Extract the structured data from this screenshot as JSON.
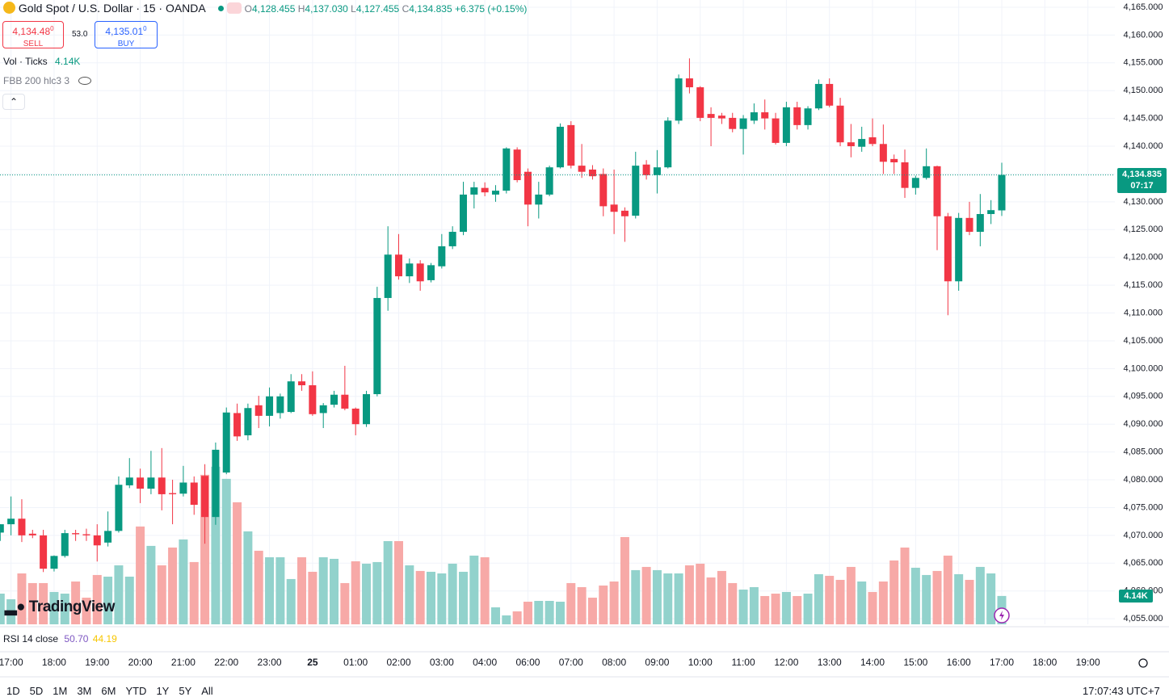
{
  "chart_data": {
    "type": "candlestick",
    "legend": {
      "title": "Gold Spot / U.S. Dollar · 15 · OANDA",
      "o_label": "O",
      "open": "4,128.455",
      "h_label": "H",
      "high": "4,137.030",
      "l_label": "L",
      "low": "4,127.455",
      "c_label": "C",
      "close": "4,134.835",
      "change": "+6.375 (+0.15%)"
    },
    "trade": {
      "sell_price": "4,134.48",
      "sell_sup": "0",
      "sell_label": "SELL",
      "spread": "53.0",
      "buy_price": "4,135.01",
      "buy_sup": "0",
      "buy_label": "BUY"
    },
    "indicators": {
      "vol_label": "Vol · Ticks",
      "vol_value": "4.14K",
      "fbb_label": "FBB 200 hlc3 3",
      "rsi_label": "RSI 14 close",
      "rsi_value": "50.70",
      "rsi_ma": "44.19"
    },
    "logo": "TradingView",
    "last_price": {
      "value": 4134.835,
      "label": "4,134.835"
    },
    "countdown": "07:17",
    "up_color": "#089981",
    "down_color": "#f23645",
    "volume_up_color": "#92d2cc",
    "volume_down_color": "#f7a9a7",
    "grid": true,
    "ylim": [
      4054,
      4166.3
    ],
    "yticks": [
      {
        "value": 4055,
        "label": "4,055.000"
      },
      {
        "value": 4060,
        "label": "4,060.000"
      },
      {
        "value": 4065,
        "label": "4,065.000"
      },
      {
        "value": 4070,
        "label": "4,070.000"
      },
      {
        "value": 4075,
        "label": "4,075.000"
      },
      {
        "value": 4080,
        "label": "4,080.000"
      },
      {
        "value": 4085,
        "label": "4,085.000"
      },
      {
        "value": 4090,
        "label": "4,090.000"
      },
      {
        "value": 4095,
        "label": "4,095.000"
      },
      {
        "value": 4100,
        "label": "4,100.000"
      },
      {
        "value": 4105,
        "label": "4,105.000"
      },
      {
        "value": 4110,
        "label": "4,110.000"
      },
      {
        "value": 4115,
        "label": "4,115.000"
      },
      {
        "value": 4120,
        "label": "4,120.000"
      },
      {
        "value": 4125,
        "label": "4,125.000"
      },
      {
        "value": 4130,
        "label": "4,130.000"
      },
      {
        "value": 4135,
        "label": "4,135.000"
      },
      {
        "value": 4140,
        "label": "4,140.000"
      },
      {
        "value": 4145,
        "label": "4,145.000"
      },
      {
        "value": 4150,
        "label": "4,150.000"
      },
      {
        "value": 4155,
        "label": "4,155.000"
      },
      {
        "value": 4160,
        "label": "4,160.000"
      },
      {
        "value": 4165,
        "label": "4,165.000"
      }
    ],
    "vol_ylim": [
      0,
      25000
    ],
    "categories": [
      null,
      "17:00",
      null,
      null,
      null,
      "18:00",
      null,
      null,
      null,
      "19:00",
      null,
      null,
      null,
      "20:00",
      null,
      null,
      null,
      "21:00",
      null,
      null,
      null,
      "22:00",
      null,
      null,
      null,
      "23:00",
      null,
      null,
      null,
      "25",
      null,
      null,
      null,
      "01:00",
      null,
      null,
      null,
      "02:00",
      null,
      null,
      null,
      "03:00",
      null,
      null,
      null,
      "04:00",
      null,
      null,
      null,
      "06:00",
      null,
      null,
      null,
      "07:00",
      null,
      null,
      null,
      "08:00",
      null,
      null,
      null,
      "09:00",
      null,
      null,
      null,
      "10:00",
      null,
      null,
      null,
      "11:00",
      null,
      null,
      null,
      "12:00",
      null,
      null,
      null,
      "13:00",
      null,
      null,
      null,
      "14:00",
      null,
      null,
      null,
      "15:00",
      null,
      null,
      null,
      "16:00",
      null,
      null,
      null,
      "17:00"
    ],
    "future_labels": [
      "18:00",
      "19:00"
    ],
    "open": [
      4070.5,
      4072,
      4073,
      4070.3,
      4070,
      4064,
      4066.3,
      4070.4,
      4070.2,
      4070,
      4068.7,
      4070.8,
      4079,
      4080.4,
      4078.4,
      4080.4,
      4077.6,
      4077.5,
      4079.5,
      4080.7,
      4073.3,
      4081.3,
      4092,
      4088,
      4093.4,
      4091.5,
      4092,
      4092.2,
      4097.7,
      4097,
      4092,
      4093.5,
      4095.3,
      4092.8,
      4090,
      4095.4,
      4112.7,
      4120.5,
      4116.6,
      4118.9,
      4115.9,
      4118.4,
      4122,
      4124.6,
      4131.3,
      4132.5,
      4131.3,
      4132,
      4139.4,
      4135.4,
      4129.5,
      4131.3,
      4136.2,
      4143.8,
      4136.5,
      4135.8,
      4135,
      4129.5,
      4128.4,
      4127.5,
      4136.7,
      4134.8,
      4136.2,
      4144.6,
      4152.2,
      4150.6,
      4145.8,
      4145.5,
      4145.1,
      4143.1,
      4144.6,
      4146.1,
      4145,
      4140.6,
      4147,
      4143.8,
      4146.8,
      4151.2,
      4147.3,
      4140.7,
      4139.9,
      4141.6,
      4140.4,
      4137.7,
      4137.1,
      4132.5,
      4134.3,
      4136.4,
      4127.4,
      4115.7,
      4127.1,
      4124.6,
      4127.8,
      4128.455
    ],
    "high": [
      4072,
      4077,
      4076.5,
      4071,
      4071,
      4066.4,
      4071,
      4071,
      4071.2,
      4072,
      4074.3,
      4080.6,
      4083.9,
      4082,
      4085.2,
      4085.7,
      4080,
      4082.5,
      4080.6,
      4082.8,
      4086.7,
      4093,
      4093.7,
      4093.7,
      4095.1,
      4096.6,
      4095.5,
      4099,
      4099,
      4099.5,
      4093.8,
      4096,
      4100.5,
      4093,
      4096,
      4114.7,
      4125.6,
      4124.2,
      4119.8,
      4119.5,
      4119,
      4124.2,
      4125.6,
      4133.6,
      4133.6,
      4133.5,
      4133,
      4139.8,
      4139.8,
      4136,
      4133.6,
      4136.5,
      4144.1,
      4144.5,
      4140.4,
      4136.6,
      4136,
      4135.8,
      4129,
      4139,
      4137.5,
      4139.3,
      4145.2,
      4152.9,
      4155.8,
      4150.8,
      4147,
      4146,
      4146,
      4145.6,
      4147.7,
      4148.4,
      4146,
      4148,
      4148,
      4147.2,
      4152,
      4152.2,
      4148.7,
      4144,
      4143.5,
      4145,
      4143.9,
      4138.5,
      4139.4,
      4134.7,
      4139.6,
      4136.5,
      4128,
      4128,
      4130,
      4131.4,
      4130.3,
      4137.03
    ],
    "low": [
      4069,
      4070,
      4068.8,
      4069.5,
      4063.4,
      4063.5,
      4066,
      4069,
      4069,
      4065.3,
      4068,
      4070.5,
      4078.5,
      4075.8,
      4077.4,
      4074.5,
      4072,
      4077,
      4073.7,
      4068.5,
      4071.9,
      4081,
      4087,
      4087.1,
      4089.3,
      4089.6,
      4091,
      4092,
      4096,
      4091.5,
      4089.3,
      4093,
      4092.5,
      4088,
      4089.5,
      4095,
      4110.4,
      4116,
      4115.4,
      4114,
      4115.5,
      4118,
      4121.5,
      4124,
      4128.8,
      4131,
      4130,
      4131.5,
      4133.5,
      4125.6,
      4127,
      4131,
      4136,
      4136,
      4134.3,
      4134,
      4127.4,
      4124.2,
      4122.8,
      4127,
      4134,
      4131.5,
      4136,
      4144,
      4149.5,
      4144.5,
      4140,
      4144,
      4142.5,
      4138.5,
      4144,
      4143,
      4140.3,
      4140,
      4143,
      4143,
      4146.5,
      4147,
      4140,
      4138,
      4139,
      4140,
      4135,
      4135,
      4130.7,
      4131.3,
      4134,
      4121.3,
      4109.6,
      4114,
      4124,
      4122,
      4126,
      4127.455
    ],
    "close": [
      4072,
      4073,
      4070,
      4070,
      4064,
      4066.3,
      4070.4,
      4070.2,
      4070,
      4068.2,
      4070.8,
      4079.1,
      4080.4,
      4078.4,
      4080.4,
      4077.4,
      4077.4,
      4079.5,
      4075.5,
      4073.3,
      4085.4,
      4092.1,
      4087.8,
      4092.9,
      4091.5,
      4095,
      4095,
      4097.7,
      4097,
      4091.8,
      4093.4,
      4095.3,
      4092.8,
      4090,
      4095.4,
      4112.7,
      4120.5,
      4116.6,
      4118.9,
      4115.7,
      4118.6,
      4122,
      4124.6,
      4131.3,
      4132.6,
      4131.7,
      4132,
      4139.6,
      4133.9,
      4129.5,
      4131.3,
      4136.2,
      4143.5,
      4136.5,
      4135.4,
      4134.6,
      4129.2,
      4128.2,
      4127.4,
      4136.5,
      4134.8,
      4136.2,
      4144.6,
      4152.2,
      4150.6,
      4145.1,
      4145.1,
      4145,
      4143.1,
      4145,
      4146.1,
      4145,
      4140.6,
      4147,
      4143.8,
      4146.8,
      4151.2,
      4147.3,
      4140.7,
      4140,
      4141.3,
      4140.4,
      4137.2,
      4137.1,
      4132.5,
      4134.3,
      4136.4,
      4127.4,
      4115.7,
      4127.1,
      4124.6,
      4127.8,
      4128.5,
      4134.835
    ],
    "volume": [
      4480,
      3660,
      7430,
      6020,
      6020,
      4720,
      4480,
      6250,
      3890,
      7200,
      6960,
      8610,
      6960,
      14280,
      11450,
      8610,
      11210,
      12390,
      9090,
      21830,
      23010,
      21240,
      17820,
      13570,
      10740,
      9790,
      9790,
      6610,
      9790,
      7670,
      9790,
      9560,
      6020,
      9200,
      8850,
      9090,
      12150,
      12150,
      8610,
      7790,
      7670,
      7430,
      8850,
      7670,
      10030,
      9790,
      2480,
      1300,
      1890,
      3300,
      3420,
      3420,
      3300,
      6020,
      5430,
      3890,
      5660,
      6250,
      12740,
      7910,
      8380,
      7910,
      7430,
      7430,
      8610,
      8850,
      6840,
      7790,
      6020,
      5070,
      5430,
      4130,
      4480,
      4720,
      4130,
      4480,
      7320,
      7080,
      6490,
      8380,
      6250,
      4720,
      6250,
      9320,
      11210,
      8260,
      7200,
      7790,
      10030,
      7320,
      6490,
      8380,
      7430,
      4140
    ],
    "ranges": [
      "1D",
      "5D",
      "1M",
      "3M",
      "6M",
      "YTD",
      "1Y",
      "5Y",
      "All"
    ],
    "clock": "17:07:43 UTC+7"
  }
}
